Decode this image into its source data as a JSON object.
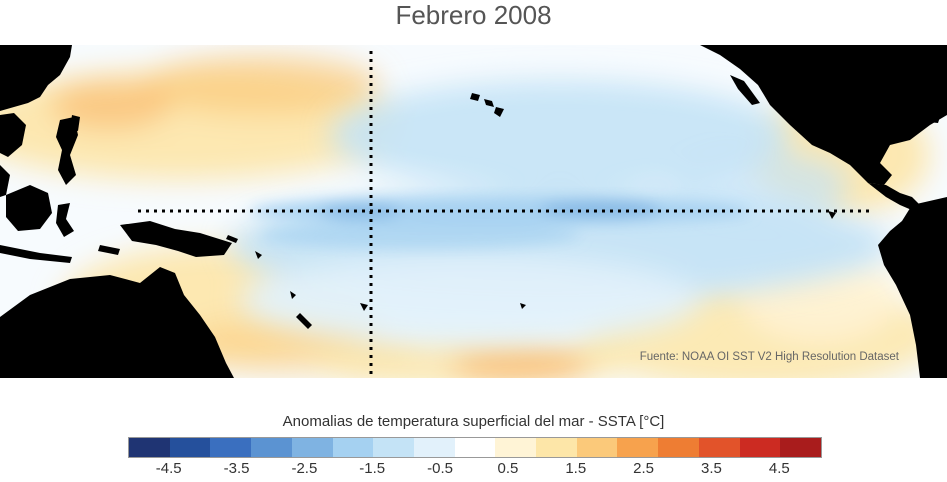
{
  "title": "Febrero 2008",
  "source_note": "Fuente: NOAA OI SST V2 High Resolution Dataset",
  "colorbar": {
    "title": "Anomalias de temperatura superficial del mar - SSTA  [°C]",
    "colors": [
      "#1f3473",
      "#25509c",
      "#3a6fbf",
      "#5b93d2",
      "#7fb3e2",
      "#a5d1f1",
      "#c4e3f6",
      "#e2f1fb",
      "#ffffff",
      "#fff4d6",
      "#fde6a8",
      "#fbc97a",
      "#f7a24d",
      "#ee7d33",
      "#e2532a",
      "#cc2b22",
      "#a91c1c"
    ],
    "tick_labels": [
      "-4.5",
      "-3.5",
      "-2.5",
      "-1.5",
      "-0.5",
      "0.5",
      "1.5",
      "2.5",
      "3.5",
      "4.5"
    ],
    "tick_values": [
      -4.5,
      -3.5,
      -2.5,
      -1.5,
      -0.5,
      0.5,
      1.5,
      2.5,
      3.5,
      4.5
    ],
    "range": [
      -4.5,
      4.5
    ]
  }
}
